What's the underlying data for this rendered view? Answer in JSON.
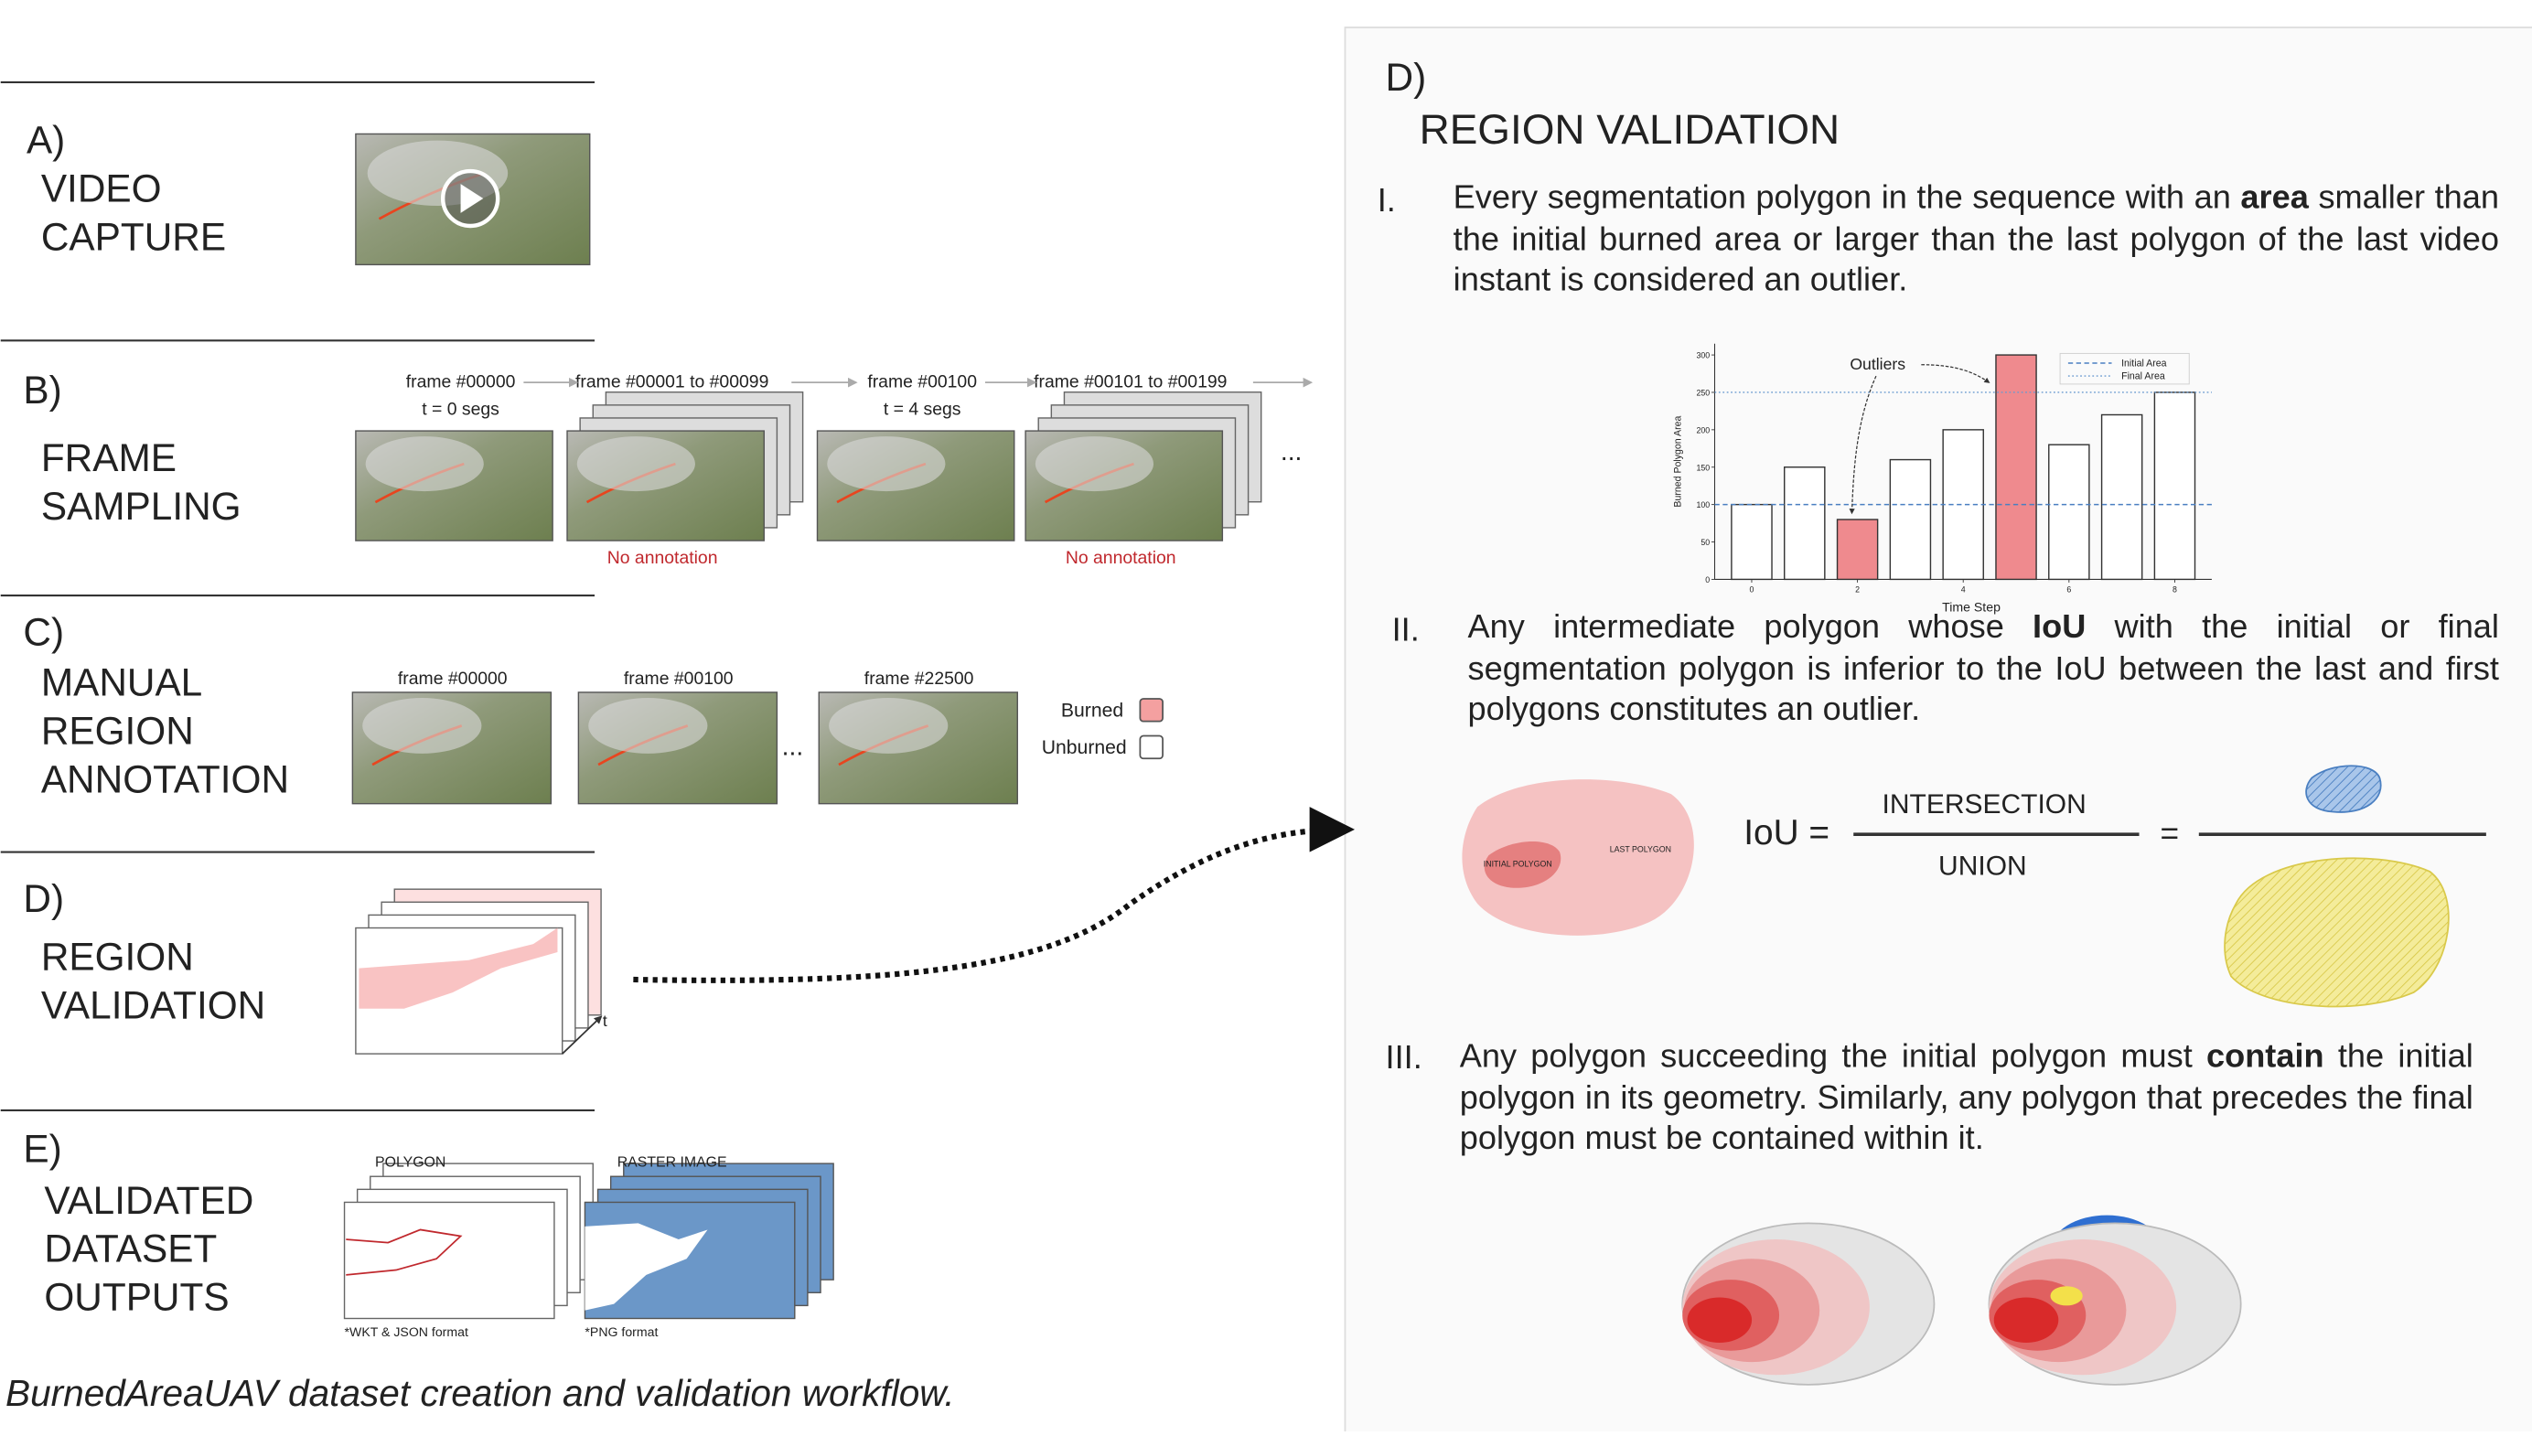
{
  "left_panels": [
    {
      "label": "A)",
      "title": [
        "VIDEO",
        "CAPTURE"
      ]
    },
    {
      "label": "B)",
      "title": [
        "FRAME",
        "SAMPLING"
      ]
    },
    {
      "label": "C)",
      "title": [
        "MANUAL",
        "REGION",
        "ANNOTATION"
      ]
    },
    {
      "label": "D)",
      "title": [
        "REGION",
        "VALIDATION"
      ]
    },
    {
      "label": "E)",
      "title": [
        "VALIDATED",
        "DATASET",
        "OUTPUTS"
      ]
    }
  ],
  "frame_sampling": {
    "frames": [
      {
        "label": "frame #00000",
        "time": "t = 0 segs"
      },
      {
        "label": "frame #00001 to #00099",
        "note": "No annotation"
      },
      {
        "label": "frame #00100",
        "time": "t = 4 segs"
      },
      {
        "label": "frame #00101  to #00199",
        "note": "No annotation"
      }
    ],
    "ellipsis": "..."
  },
  "annotation": {
    "frames": [
      "frame #00000",
      "frame #00100",
      "frame #22500"
    ],
    "ellipsis": "...",
    "legend": [
      "Burned",
      "Unburned"
    ]
  },
  "validation_axis": "t",
  "outputs": {
    "polygon": "POLYGON",
    "raster": "RASTER IMAGE",
    "polygon_format": "*WKT & JSON format",
    "raster_format": "*PNG format"
  },
  "caption": "BurnedAreaUAV dataset creation and validation workflow.",
  "region_validation": {
    "label": "D)",
    "title": "REGION VALIDATION",
    "rules": [
      {
        "numeral": "I.",
        "before": "Every segmentation polygon in the sequence with an ",
        "bold": "area",
        "after": " smaller than the initial burned area or larger than the last polygon of the last video instant is considered an outlier."
      },
      {
        "numeral": "II.",
        "before": "Any intermediate polygon whose ",
        "bold": "IoU",
        "after": " with the initial or final segmentation polygon is inferior to the IoU between the last and first polygons constitutes an outlier."
      },
      {
        "numeral": "III.",
        "before": "Any polygon succeeding the initial polygon must ",
        "bold": "contain",
        "after": " the initial polygon in its geometry. Similarly, any polygon that precedes the final polygon must be contained within it."
      }
    ],
    "iou": {
      "lhs": "IoU =",
      "numerator": "INTERSECTION",
      "denominator": "UNION",
      "equals": "=",
      "initial": "INITIAL POLYGON",
      "last": "LAST POLYGON"
    }
  },
  "chart_data": {
    "type": "bar",
    "x": [
      0,
      1,
      2,
      3,
      4,
      5,
      6,
      7,
      8
    ],
    "values": [
      100,
      150,
      80,
      160,
      200,
      300,
      180,
      220,
      250
    ],
    "bar_colors": [
      "#ffffff",
      "#ffffff",
      "#ef8a8e",
      "#ffffff",
      "#ffffff",
      "#ef8a8e",
      "#ffffff",
      "#ffffff",
      "#ffffff"
    ],
    "xlim": [
      -0.7,
      8.7
    ],
    "xticks": [
      0,
      2,
      4,
      6,
      8
    ],
    "ylim": [
      0,
      315
    ],
    "yticks": [
      0,
      50,
      100,
      150,
      200,
      250,
      300
    ],
    "xlabel": "Time Step",
    "ylabel": "Burned Polygon Area",
    "annotation": "Outliers",
    "reference_lines": [
      {
        "name": "Initial Area",
        "value": 100,
        "color": "#4a7fc1"
      },
      {
        "name": "Final Area",
        "value": 250,
        "color": "#6a9ad0"
      }
    ]
  }
}
